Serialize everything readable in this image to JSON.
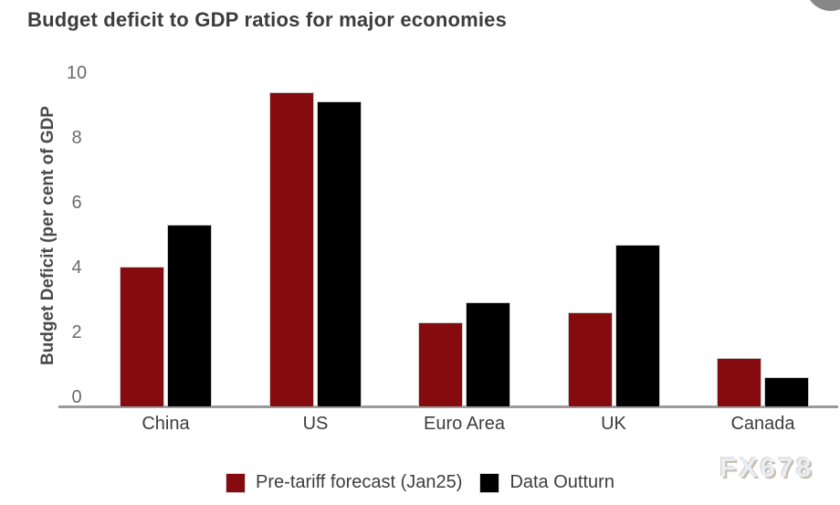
{
  "header": {
    "title": "Budget deficit to GDP ratios for major economies"
  },
  "chart_data": {
    "type": "bar",
    "title": "Budget deficit to GDP ratios for major economies",
    "xlabel": "",
    "ylabel": "Budget Deficit (per cent of GDP",
    "categories": [
      "China",
      "US",
      "Euro Area",
      "UK",
      "Canada"
    ],
    "series": [
      {
        "name": "Pre-tariff forecast (Jan25)",
        "color": "#850b0e",
        "values": [
          4.3,
          9.7,
          2.6,
          2.9,
          1.5
        ]
      },
      {
        "name": "Data Outturn",
        "color": "#000000",
        "values": [
          5.6,
          9.4,
          3.2,
          5.0,
          0.9
        ]
      }
    ],
    "ylim": [
      0,
      10
    ],
    "yticks": [
      0,
      2,
      4,
      6,
      8,
      10
    ],
    "grid": false,
    "legend_position": "bottom"
  },
  "legend": {
    "items": [
      {
        "label": "Pre-tariff forecast (Jan25)",
        "color": "#850b0e"
      },
      {
        "label": "Data Outturn",
        "color": "#000000"
      }
    ]
  },
  "watermark": {
    "text": "FX678"
  },
  "colors": {
    "background": "#ffffff",
    "title_text": "#3c3c3c",
    "axis_line": "#9b9b9b",
    "tick_text": "#6b6b6b",
    "category_text": "#3d3d3d",
    "corner_button": "#878787"
  }
}
